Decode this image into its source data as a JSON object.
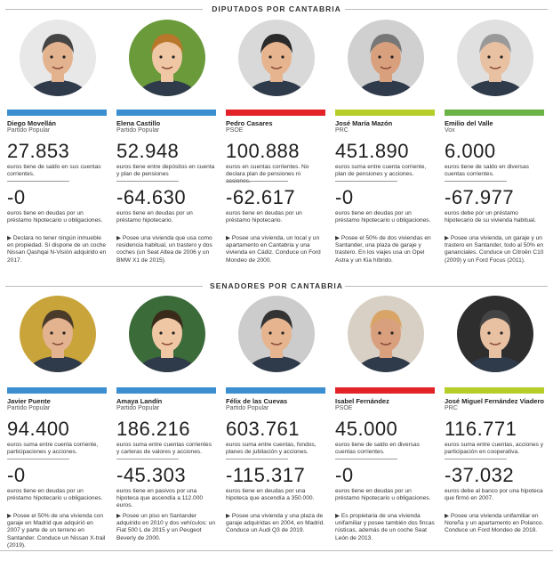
{
  "colors": {
    "pp": "#3b8fd0",
    "psoe": "#e32228",
    "prc": "#b7cd2a",
    "vox": "#6bb344"
  },
  "sections": {
    "diputados": "DIPUTADOS POR CANTABRIA",
    "senadores": "SENADORES POR CANTABRIA"
  },
  "diputados": [
    {
      "name": "Diego Movellán",
      "party": "Partido Popular",
      "party_key": "pp",
      "assets": "27.853",
      "assets_text": "euros tiene de saldo en sus cuentas corrientes.",
      "debts": "-0",
      "debts_text": "euros tiene en deudas por un préstamo hipotecario u obligaciones.",
      "note": "▶ Declara no tener ningún inmueble en propiedad. Sí dispone de un coche Nissan Qashqai N-Visión adquirido en 2017."
    },
    {
      "name": "Elena Castillo",
      "party": "Partido Popular",
      "party_key": "pp",
      "assets": "52.948",
      "assets_text": "euros tiene entre depósitos en cuenta y plan de pensiones",
      "debts": "-64.630",
      "debts_text": "euros tiene en deudas por un préstamo hipotecario.",
      "note": "▶ Posee una vivienda que usa como residencia habitual, un trastero y dos coches (un Seat Altea de 2006 y un BMW X1 de 2015)."
    },
    {
      "name": "Pedro Casares",
      "party": "PSOE",
      "party_key": "psoe",
      "assets": "100.888",
      "assets_text": "euros en cuentas corrientes. No declara plan de pensiones ni acciones.",
      "debts": "-62.617",
      "debts_text": "euros tiene en deudas por un préstamo hipotecario.",
      "note": "▶ Posee una vivienda, un local y un apartamento en Cantabria y una vivienda en Cádiz. Conduce un Ford Mondeo de 2000."
    },
    {
      "name": "José María Mazón",
      "party": "PRC",
      "party_key": "prc",
      "assets": "451.890",
      "assets_text": "euros suma entre cuenta corriente, plan de pensiones y acciones.",
      "debts": "-0",
      "debts_text": "euros tiene en deudas por un préstamo hipotecario u obligaciones.",
      "note": "▶ Posee el 50% de dos viviendas en Santander, una plaza de garaje y trastero. En los viajes usa un Opel Astra y un Kia híbrido."
    },
    {
      "name": "Emilio del Valle",
      "party": "Vox",
      "party_key": "vox",
      "assets": "6.000",
      "assets_text": "euros tiene de saldo en diversas cuentas corrientes.",
      "debts": "-67.977",
      "debts_text": "euros debe por un préstamo hipotecario de su vivienda habitual.",
      "note": "▶ Posee una vivienda, un garaje y un trastero en Santander, todo al 50% en gananciales. Conduce un Citroën C10 (2009) y un Ford Focus (2011)."
    }
  ],
  "senadores": [
    {
      "name": "Javier Puente",
      "party": "Partido Popular",
      "party_key": "pp",
      "assets": "94.400",
      "assets_text": "euros suma entre cuenta corriente, participaciones y acciones.",
      "debts": "-0",
      "debts_text": "euros tiene en deudas por un préstamo hipotecario u obligaciones.",
      "note": "▶ Posee el 50% de una vivienda con garaje en Madrid que adquirió en 2007 y parte de un terreno en Santander. Conduce un Nissan X-trail (2019)."
    },
    {
      "name": "Amaya Landín",
      "party": "Partido Popular",
      "party_key": "pp",
      "assets": "186.216",
      "assets_text": "euros suma entre cuentas corrientes y carteras de valores y acciones.",
      "debts": "-45.303",
      "debts_text": "euros tiene en pasivos por una hipoteca que ascendía a 112.000 euros.",
      "note": "▶ Posee un piso en Santander adquirido en 2010 y dos vehículos: un Fiat 500 L de 2015 y un Peugeot Beverly de 2000."
    },
    {
      "name": "Félix de las Cuevas",
      "party": "Partido Popular",
      "party_key": "pp",
      "assets": "603.761",
      "assets_text": "euros suma entre cuentas, fondos, planes de jubilación y acciones.",
      "debts": "-115.317",
      "debts_text": "euros tiene en deudas por una hipoteca que ascendía a 350.000.",
      "note": "▶ Posee una vivienda y una plaza de garaje adquiridas en 2004, en Madrid. Conduce un Audi Q3 de 2019."
    },
    {
      "name": "Isabel Fernández",
      "party": "PSOE",
      "party_key": "psoe",
      "assets": "45.000",
      "assets_text": "euros tiene de saldo en diversas cuentas corrientes.",
      "debts": "-0",
      "debts_text": "euros tiene en deudas por un préstamo hipotecario u obligaciones.",
      "note": "▶ Es propietaria de una vivienda unifamiliar y posee también dos fincas rústicas, además de un coche Seat León de 2013."
    },
    {
      "name": "José Miguel Fernández Viadero",
      "party": "PRC",
      "party_key": "prc",
      "assets": "116.771",
      "assets_text": "euros suma entre cuentas, acciones y participación en cooperativa.",
      "debts": "-37.032",
      "debts_text": "euros debe al banco por una hipoteca que firmó en 2007.",
      "note": "▶ Posee una vivienda unifamiliar en Noreña y un apartamento en Polanco. Conduce un Ford Mondeo de 2018."
    }
  ]
}
